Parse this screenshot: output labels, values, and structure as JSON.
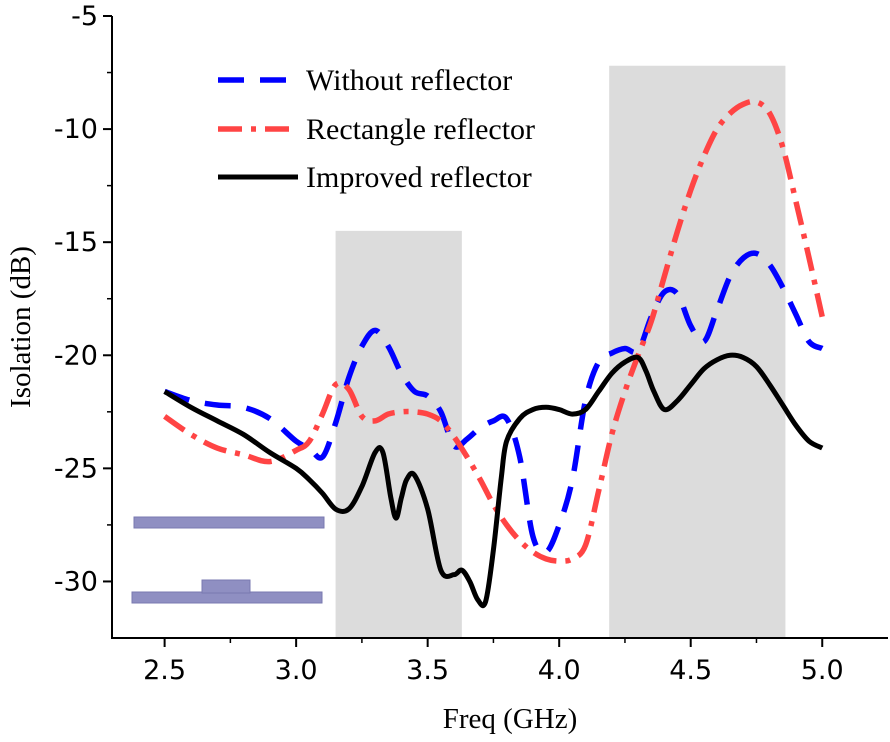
{
  "chart_data": {
    "type": "line",
    "title": "",
    "xlabel": "Freq (GHz)",
    "ylabel": "Isolation (dB)",
    "xlim": [
      2.3,
      5.25
    ],
    "ylim": [
      -32.5,
      -5
    ],
    "xticks": [
      "2.5",
      "3.0",
      "3.5",
      "4.0",
      "4.5",
      "5.0"
    ],
    "yticks": [
      "-5",
      "-10",
      "-15",
      "-20",
      "-25",
      "-30"
    ],
    "grid": false,
    "legend_position": "top-right",
    "shaded_bands": [
      {
        "x0": 3.15,
        "x1": 3.63,
        "y0": -32.5,
        "y1": -14.5
      },
      {
        "x0": 4.19,
        "x1": 4.86,
        "y0": -32.5,
        "y1": -7.2
      }
    ],
    "series": [
      {
        "name": "Without reflector",
        "color": "#0000ff",
        "style": "dashed",
        "x": [
          2.5,
          2.6,
          2.7,
          2.8,
          2.9,
          3.0,
          3.05,
          3.1,
          3.15,
          3.2,
          3.25,
          3.3,
          3.35,
          3.4,
          3.45,
          3.5,
          3.55,
          3.6,
          3.65,
          3.7,
          3.75,
          3.8,
          3.85,
          3.9,
          3.95,
          4.0,
          4.05,
          4.1,
          4.15,
          4.2,
          4.25,
          4.3,
          4.35,
          4.4,
          4.45,
          4.5,
          4.55,
          4.6,
          4.65,
          4.7,
          4.75,
          4.8,
          4.85,
          4.9,
          4.95,
          5.0
        ],
        "values": [
          -21.6,
          -22.0,
          -22.2,
          -22.3,
          -22.8,
          -23.8,
          -24.1,
          -24.5,
          -23.0,
          -21.0,
          -19.6,
          -18.9,
          -19.6,
          -20.8,
          -21.6,
          -21.8,
          -22.5,
          -24.0,
          -23.7,
          -23.2,
          -22.9,
          -22.8,
          -24.5,
          -28.0,
          -28.7,
          -27.5,
          -25.5,
          -22.0,
          -20.3,
          -19.9,
          -19.7,
          -19.8,
          -18.3,
          -17.2,
          -17.3,
          -18.7,
          -19.4,
          -18.0,
          -16.5,
          -15.7,
          -15.5,
          -16.0,
          -17.0,
          -18.2,
          -19.4,
          -19.7
        ]
      },
      {
        "name": "Rectangle reflector",
        "color": "#ff4444",
        "style": "dash-dot",
        "x": [
          2.5,
          2.6,
          2.7,
          2.8,
          2.9,
          3.0,
          3.05,
          3.1,
          3.15,
          3.2,
          3.25,
          3.3,
          3.35,
          3.4,
          3.45,
          3.5,
          3.55,
          3.6,
          3.65,
          3.7,
          3.75,
          3.8,
          3.85,
          3.9,
          3.95,
          4.0,
          4.05,
          4.1,
          4.15,
          4.2,
          4.25,
          4.3,
          4.35,
          4.4,
          4.45,
          4.5,
          4.55,
          4.6,
          4.65,
          4.7,
          4.75,
          4.8,
          4.85,
          4.9,
          4.95,
          5.0
        ],
        "values": [
          -22.7,
          -23.5,
          -24.1,
          -24.4,
          -24.7,
          -24.2,
          -23.8,
          -22.6,
          -21.3,
          -21.5,
          -22.7,
          -22.9,
          -22.6,
          -22.5,
          -22.5,
          -22.6,
          -22.9,
          -23.6,
          -24.5,
          -25.5,
          -26.6,
          -27.5,
          -28.2,
          -28.7,
          -29.0,
          -29.1,
          -29.0,
          -28.4,
          -26.0,
          -23.5,
          -21.6,
          -20.0,
          -18.5,
          -16.5,
          -14.5,
          -12.7,
          -11.2,
          -10.0,
          -9.3,
          -8.9,
          -8.8,
          -9.3,
          -10.8,
          -13.2,
          -15.7,
          -18.3
        ]
      },
      {
        "name": "Improved reflector",
        "color": "#000000",
        "style": "solid",
        "x": [
          2.5,
          2.6,
          2.7,
          2.8,
          2.9,
          3.0,
          3.05,
          3.1,
          3.15,
          3.2,
          3.25,
          3.3,
          3.33,
          3.36,
          3.38,
          3.4,
          3.42,
          3.45,
          3.5,
          3.55,
          3.6,
          3.63,
          3.66,
          3.69,
          3.72,
          3.75,
          3.78,
          3.8,
          3.85,
          3.9,
          3.95,
          4.0,
          4.05,
          4.1,
          4.15,
          4.2,
          4.25,
          4.3,
          4.33,
          4.36,
          4.4,
          4.45,
          4.5,
          4.55,
          4.6,
          4.65,
          4.7,
          4.75,
          4.8,
          4.85,
          4.9,
          4.95,
          5.0
        ],
        "values": [
          -21.6,
          -22.3,
          -22.9,
          -23.5,
          -24.3,
          -25.0,
          -25.5,
          -26.1,
          -26.8,
          -26.8,
          -25.8,
          -24.3,
          -24.3,
          -26.3,
          -27.2,
          -26.3,
          -25.5,
          -25.3,
          -26.8,
          -29.5,
          -29.7,
          -29.5,
          -30.0,
          -30.8,
          -30.9,
          -28.6,
          -25.4,
          -23.8,
          -22.8,
          -22.4,
          -22.3,
          -22.4,
          -22.6,
          -22.4,
          -21.6,
          -20.8,
          -20.3,
          -20.1,
          -20.7,
          -21.6,
          -22.4,
          -22.0,
          -21.3,
          -20.6,
          -20.2,
          -20.0,
          -20.1,
          -20.5,
          -21.3,
          -22.2,
          -23.1,
          -23.8,
          -24.1
        ]
      }
    ],
    "inset": {
      "color": "#8f8fc2",
      "description_shapes": [
        "upper-plate",
        "lower-plate-with-feed"
      ]
    }
  }
}
